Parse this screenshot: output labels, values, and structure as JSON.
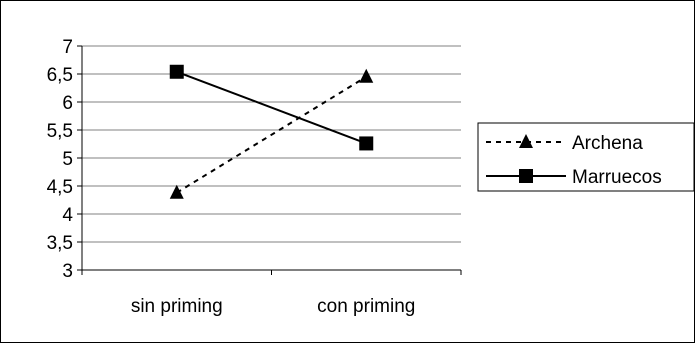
{
  "chart_data": {
    "type": "line",
    "categories": [
      "sin priming",
      "con priming"
    ],
    "series": [
      {
        "name": "Archena",
        "values": [
          4.38,
          6.45
        ],
        "line_style": "dashed",
        "marker": "triangle",
        "color": "#000000"
      },
      {
        "name": "Marruecos",
        "values": [
          6.54,
          5.26
        ],
        "line_style": "solid",
        "marker": "square",
        "color": "#000000"
      }
    ],
    "y_ticks": [
      "3",
      "3,5",
      "4",
      "4,5",
      "5",
      "5,5",
      "6",
      "6,5",
      "7"
    ],
    "ylim": [
      3,
      7
    ],
    "grid": true,
    "legend_position": "right",
    "title": "",
    "xlabel": "",
    "ylabel": ""
  }
}
